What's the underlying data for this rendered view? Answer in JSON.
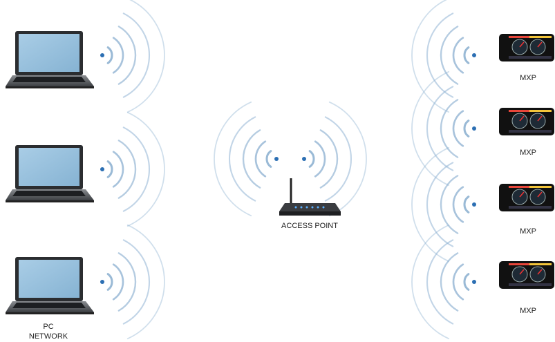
{
  "pc_network": {
    "label_lines": [
      "PC",
      "NETWORK"
    ]
  },
  "access_point": {
    "label": "ACCESS POINT"
  },
  "mxp_devices": [
    {
      "label": "MXP"
    },
    {
      "label": "MXP"
    },
    {
      "label": "MXP"
    },
    {
      "label": "MXP"
    }
  ]
}
